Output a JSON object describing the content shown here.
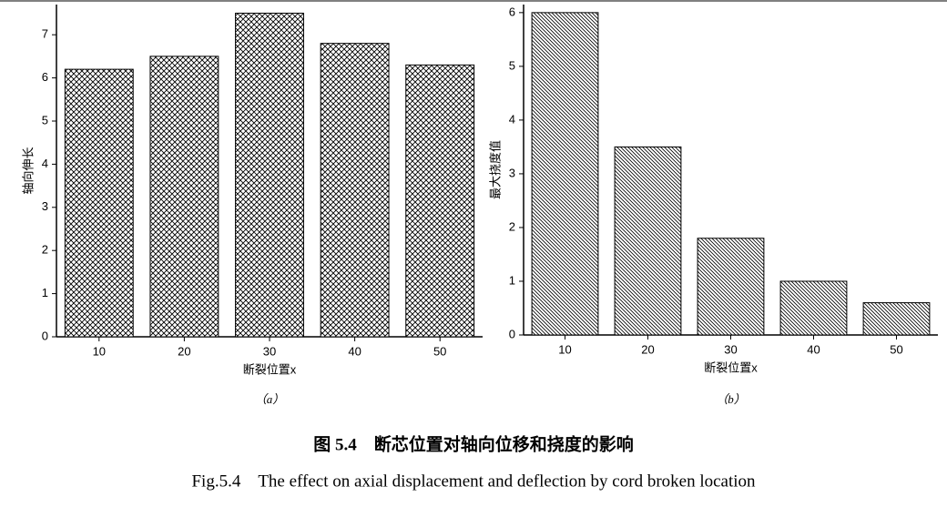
{
  "chart_data": [
    {
      "type": "bar",
      "caption": "（a）",
      "xlabel": "断裂位置x",
      "ylabel": "轴向伸长",
      "categories": [
        "10",
        "20",
        "30",
        "40",
        "50"
      ],
      "values": [
        6.2,
        6.5,
        7.5,
        6.8,
        6.3
      ],
      "color": "#000000",
      "pattern": "crosshatch",
      "ylim": [
        0,
        7.7
      ],
      "yticks": [
        0,
        1,
        2,
        3,
        4,
        5,
        6,
        7
      ]
    },
    {
      "type": "bar",
      "caption": "（b）",
      "xlabel": "断裂位置x",
      "ylabel": "最大挠度值",
      "categories": [
        "10",
        "20",
        "30",
        "40",
        "50"
      ],
      "values": [
        6.0,
        3.5,
        1.8,
        1.0,
        0.6
      ],
      "color": "#000000",
      "pattern": "diagonal",
      "ylim": [
        0,
        6.15
      ],
      "yticks": [
        0,
        1,
        2,
        3,
        4,
        5,
        6
      ]
    }
  ],
  "figure_title": "图 5.4　断芯位置对轴向位移和挠度的影响",
  "figure_title_en": "Fig.5.4　The effect on axial displacement and deflection by cord broken location"
}
